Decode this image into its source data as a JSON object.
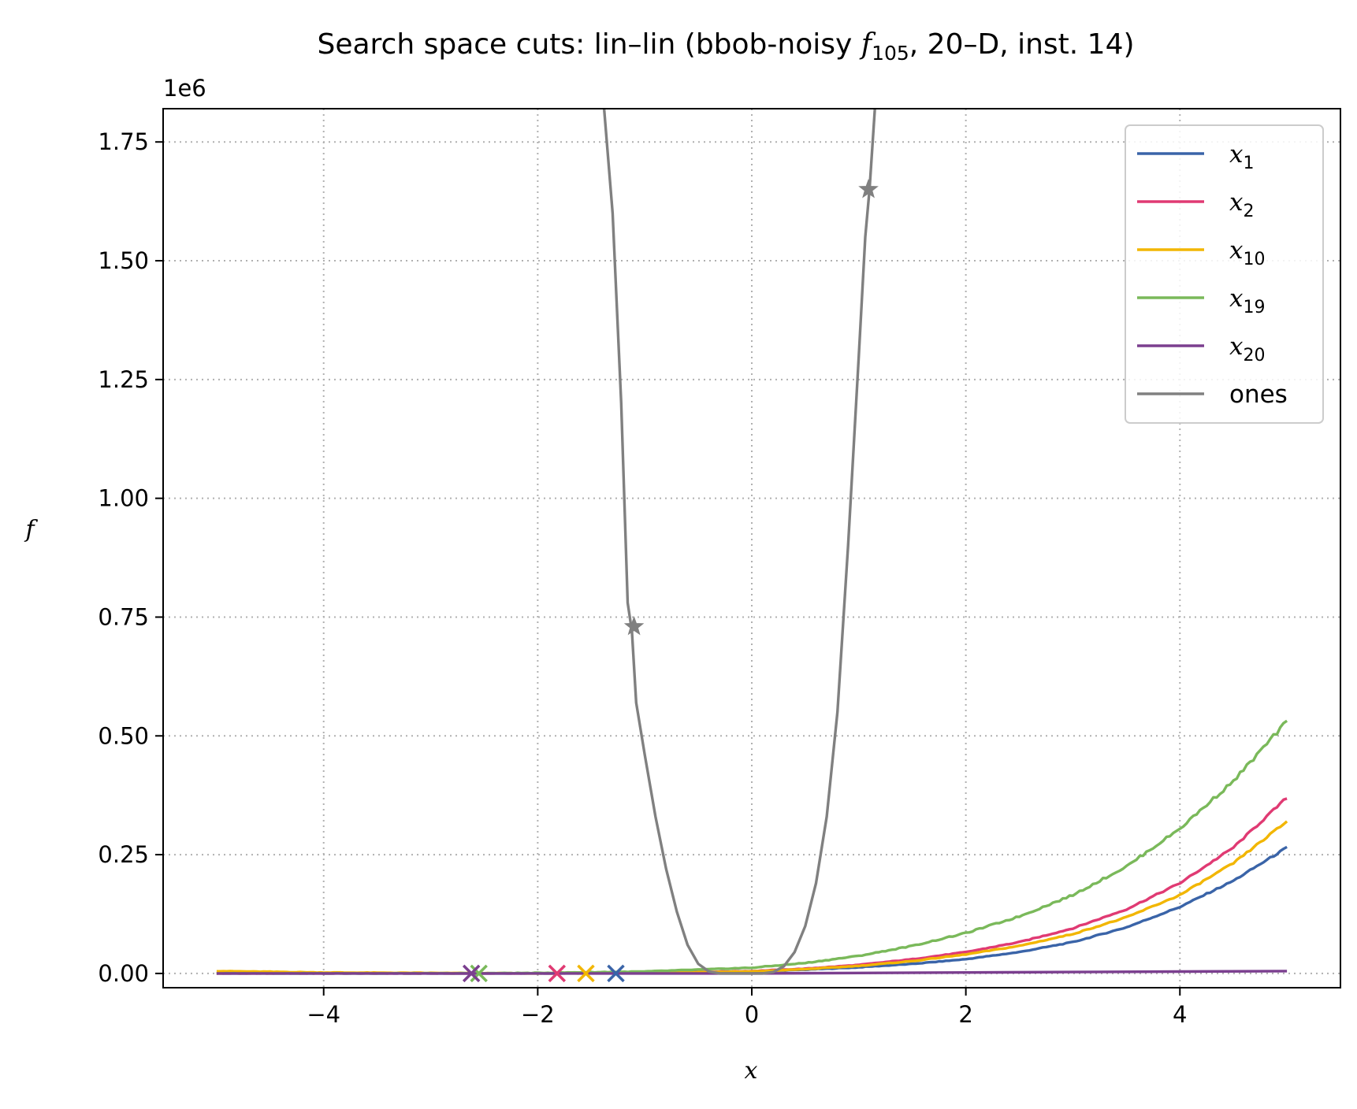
{
  "chart_data": {
    "type": "line",
    "title": {
      "prefix": "Search space cuts: lin–lin (bbob-noisy ",
      "func_symbol": "f",
      "func_subscript": "105",
      "suffix": ", 20–D, inst. 14)"
    },
    "xlabel": "x",
    "ylabel": "f",
    "y_offset_label": "1e6",
    "xlim": [
      -5.5,
      5.5
    ],
    "ylim": [
      -0.03,
      1.82
    ],
    "y_scale_note": "values in units of 1e6",
    "xticks": [
      -4,
      -2,
      0,
      2,
      4
    ],
    "xtick_labels": [
      "−4",
      "−2",
      "0",
      "2",
      "4"
    ],
    "yticks": [
      0.0,
      0.25,
      0.5,
      0.75,
      1.0,
      1.25,
      1.5,
      1.75
    ],
    "ytick_labels": [
      "0.00",
      "0.25",
      "0.50",
      "0.75",
      "1.00",
      "1.25",
      "1.50",
      "1.75"
    ],
    "grid": true,
    "legend_position": "top-right",
    "series": [
      {
        "name": "x",
        "subscript": "1",
        "color": "#3a64a8",
        "x": [
          -5,
          -4,
          -3,
          -2,
          -1,
          0,
          0.5,
          1,
          1.5,
          2,
          2.5,
          3,
          3.5,
          4,
          4.5,
          5
        ],
        "y": [
          0,
          0,
          0,
          0,
          0.001,
          0.004,
          0.008,
          0.013,
          0.02,
          0.03,
          0.045,
          0.066,
          0.097,
          0.14,
          0.195,
          0.265
        ],
        "min_marker": {
          "x": -1.27,
          "y": 0
        },
        "noise": 0.003
      },
      {
        "name": "x",
        "subscript": "2",
        "color": "#e03a73",
        "x": [
          -5,
          -4,
          -3,
          -2,
          -1,
          0,
          0.5,
          1,
          1.5,
          2,
          2.5,
          3,
          3.5,
          4,
          4.5,
          5
        ],
        "y": [
          0,
          0,
          0,
          0,
          0.001,
          0.005,
          0.01,
          0.018,
          0.03,
          0.045,
          0.066,
          0.095,
          0.135,
          0.19,
          0.265,
          0.37
        ],
        "min_marker": {
          "x": -1.82,
          "y": 0
        },
        "noise": 0.003
      },
      {
        "name": "x",
        "subscript": "10",
        "color": "#f2b600",
        "x": [
          -5,
          -4,
          -3,
          -2,
          -1,
          0,
          0.5,
          1,
          1.5,
          2,
          2.5,
          3,
          3.5,
          4,
          4.5,
          5
        ],
        "y": [
          0.005,
          0.002,
          0.001,
          0,
          0.001,
          0.004,
          0.009,
          0.016,
          0.026,
          0.04,
          0.058,
          0.083,
          0.118,
          0.165,
          0.232,
          0.32
        ],
        "min_marker": {
          "x": -1.55,
          "y": 0
        },
        "noise": 0.003
      },
      {
        "name": "x",
        "subscript": "19",
        "color": "#7ab95a",
        "x": [
          -5,
          -4,
          -3,
          -2,
          -1,
          0,
          0.5,
          1,
          1.5,
          2,
          2.5,
          3,
          3.5,
          4,
          4.5,
          5
        ],
        "y": [
          0,
          0,
          0,
          0.001,
          0.004,
          0.012,
          0.022,
          0.037,
          0.058,
          0.085,
          0.12,
          0.165,
          0.225,
          0.305,
          0.405,
          0.53
        ],
        "min_marker": {
          "x": -2.55,
          "y": 0
        },
        "noise": 0.004
      },
      {
        "name": "x",
        "subscript": "20",
        "color": "#7b3f8f",
        "x": [
          -5,
          -4,
          -3,
          -2,
          -1,
          0,
          1,
          2,
          3,
          4,
          5
        ],
        "y": [
          0,
          0,
          0,
          0,
          0,
          0,
          0.001,
          0.002,
          0.003,
          0.004,
          0.005
        ],
        "min_marker": {
          "x": -2.62,
          "y": 0
        },
        "noise": 0
      },
      {
        "name": "ones",
        "color": "#808080",
        "x": [
          -1.38,
          -1.3,
          -1.22,
          -1.16,
          -1.12,
          -1.08,
          -1.0,
          -0.9,
          -0.8,
          -0.7,
          -0.6,
          -0.5,
          -0.4,
          -0.3,
          -0.2,
          -0.1,
          0.0,
          0.1,
          0.2,
          0.3,
          0.4,
          0.5,
          0.6,
          0.7,
          0.8,
          0.9,
          1.0,
          1.06,
          1.1,
          1.15
        ],
        "y": [
          1.82,
          1.6,
          1.2,
          0.78,
          0.72,
          0.57,
          0.46,
          0.33,
          0.22,
          0.13,
          0.06,
          0.02,
          0.004,
          0.0,
          0.0,
          0.0,
          0.0,
          0.0,
          0.003,
          0.015,
          0.045,
          0.1,
          0.19,
          0.33,
          0.55,
          0.9,
          1.3,
          1.55,
          1.65,
          1.82
        ],
        "star_markers": [
          {
            "x": -1.1,
            "y": 0.73
          },
          {
            "x": 1.09,
            "y": 1.65
          }
        ],
        "noise": 0
      }
    ]
  }
}
